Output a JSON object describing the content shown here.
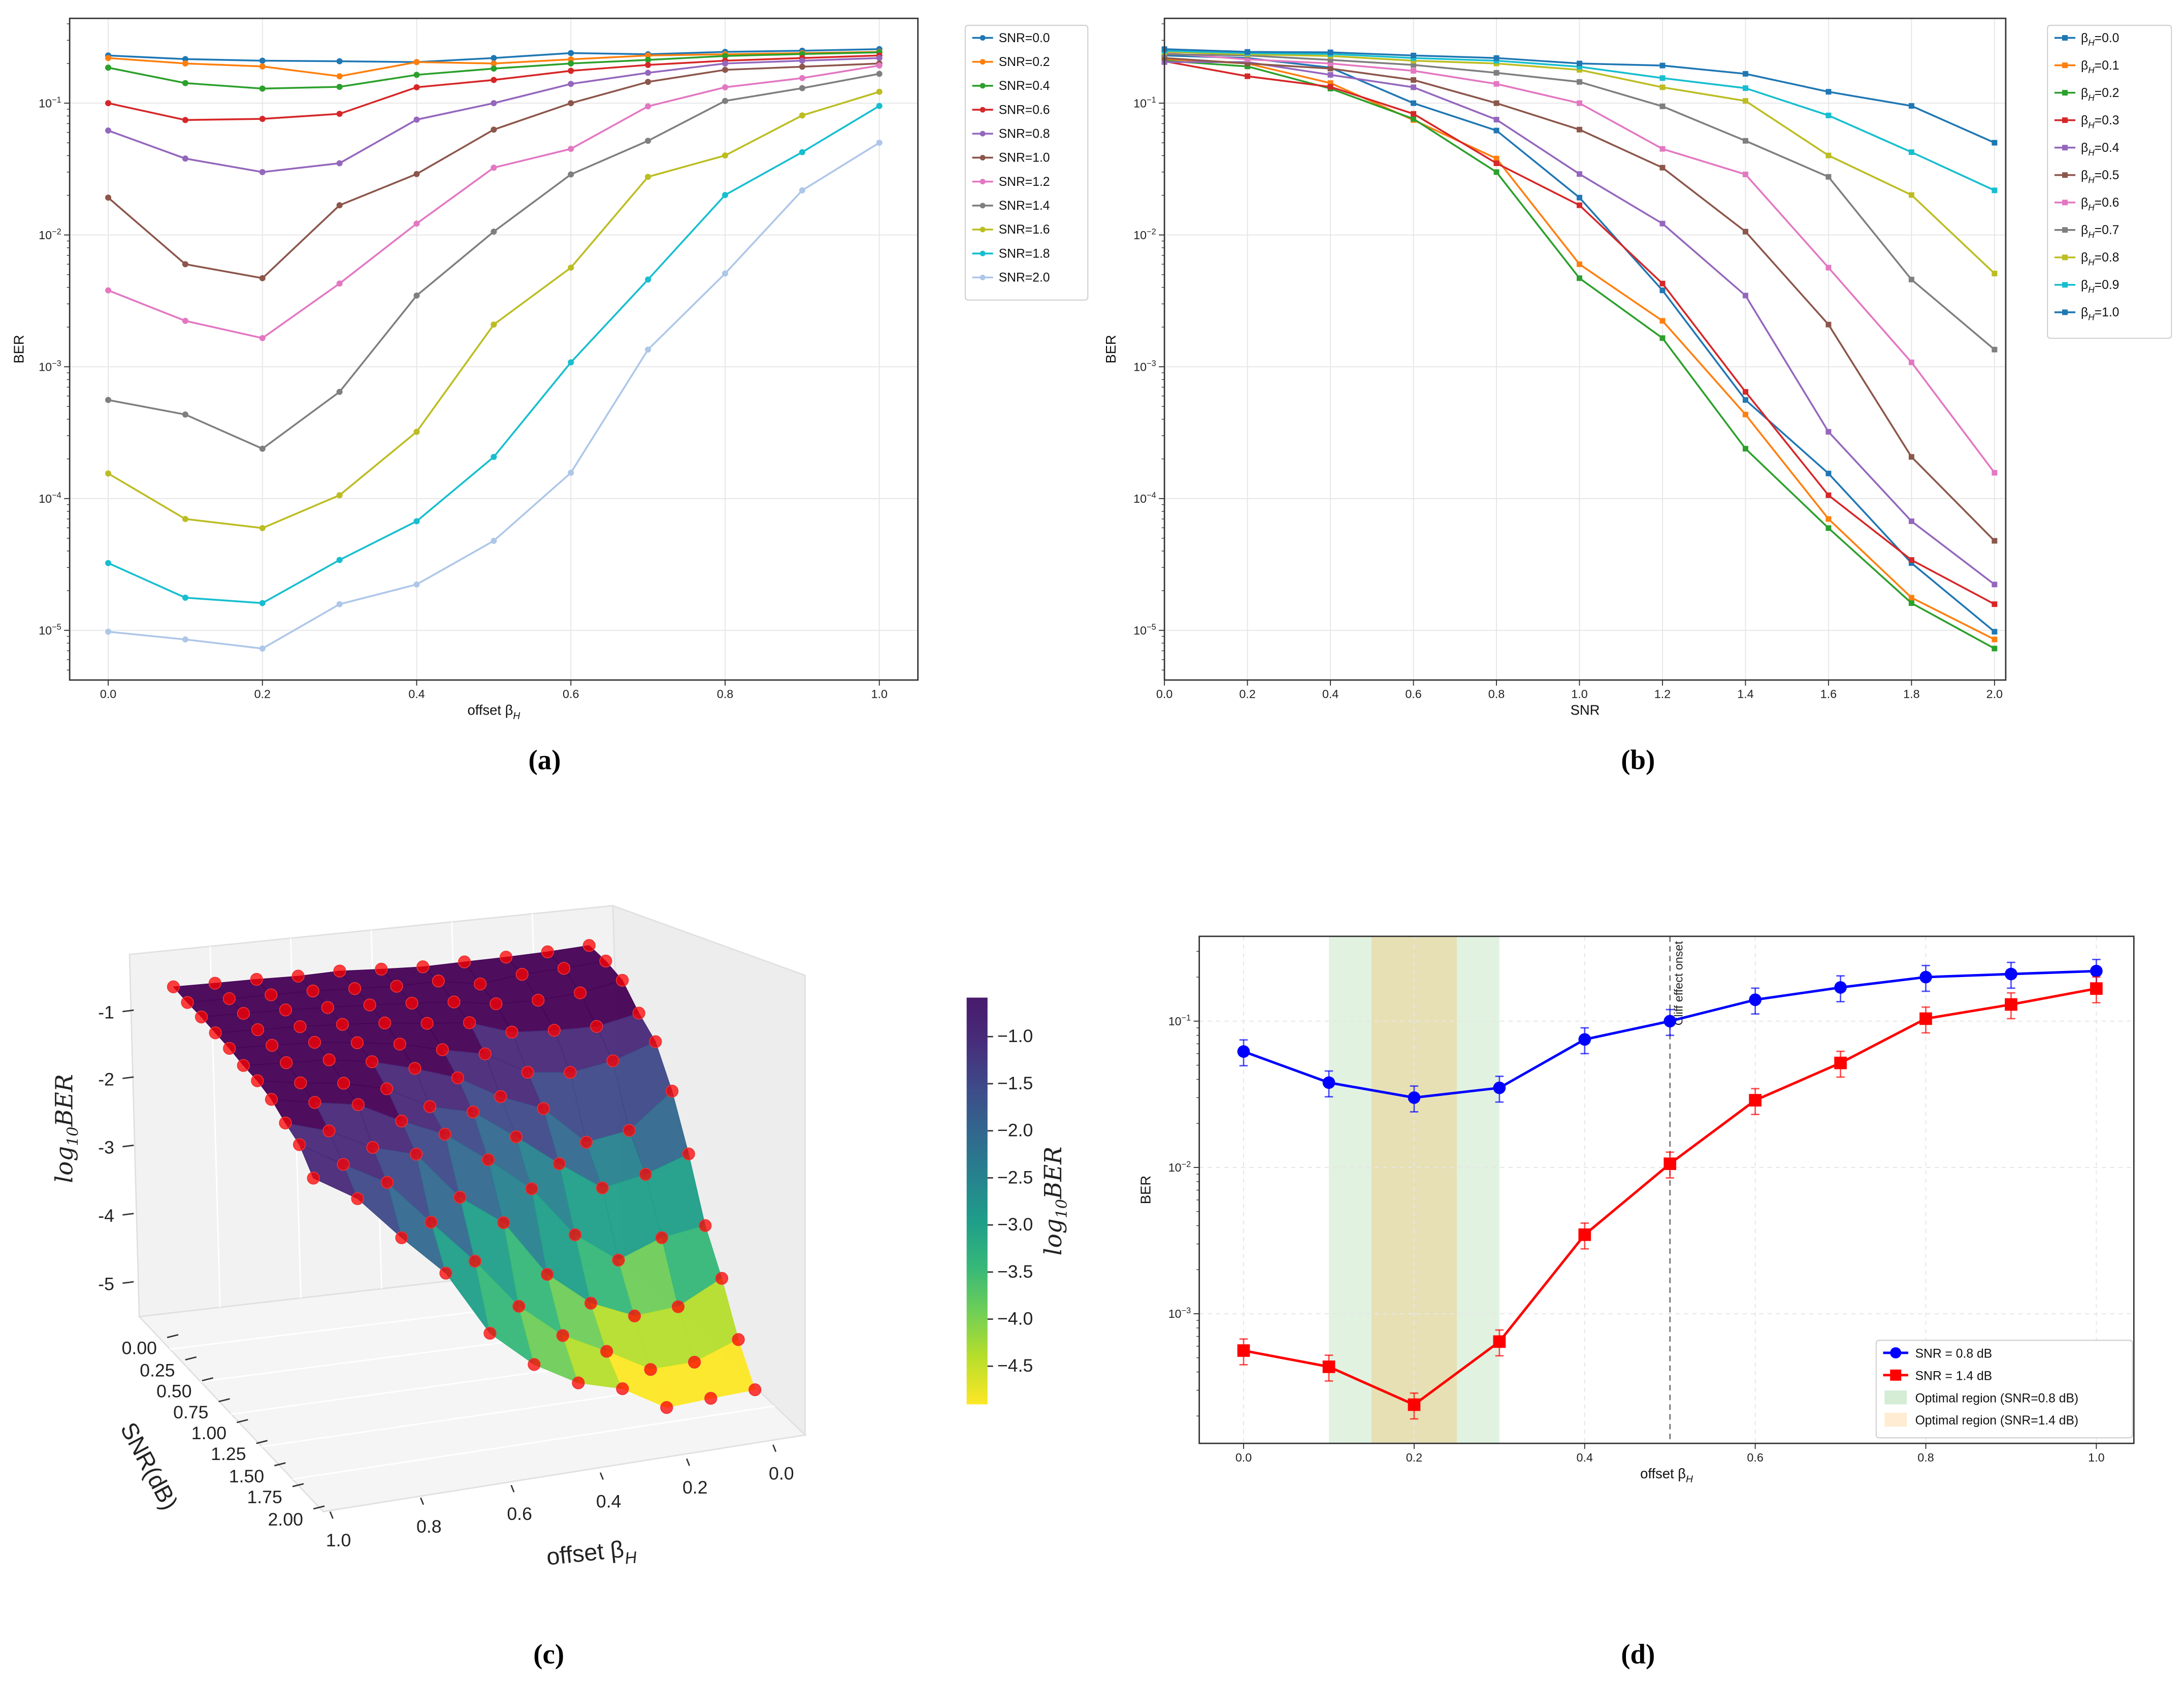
{
  "panel_labels": [
    "(a)",
    "(b)",
    "(c)",
    "(d)"
  ],
  "chart_data": [
    {
      "type": "line",
      "panel": "(a)",
      "xlabel": "offset β_H",
      "ylabel": "BER",
      "yscale": "log",
      "xlim": [
        -0.05,
        1.05
      ],
      "ylim": [
        4.2e-06,
        0.44
      ],
      "xticks": [
        "0.0",
        "0.2",
        "0.4",
        "0.6",
        "0.8",
        "1.0"
      ],
      "yticks": [
        "10^-5",
        "10^-4",
        "10^-3",
        "10^-2",
        "10^-1"
      ],
      "grid": true,
      "legend": "outside-right",
      "marker": "circle",
      "x": [
        0.0,
        0.1,
        0.2,
        0.3,
        0.4,
        0.5,
        0.6,
        0.7,
        0.8,
        0.9,
        1.0
      ],
      "series": [
        {
          "name": "SNR=0.0",
          "color": "#1f77b4",
          "values": [
            0.23,
            0.216,
            0.21,
            0.208,
            0.205,
            0.22,
            0.24,
            0.235,
            0.245,
            0.25,
            0.257
          ]
        },
        {
          "name": "SNR=0.2",
          "color": "#ff7f0e",
          "values": [
            0.22,
            0.2,
            0.19,
            0.16,
            0.205,
            0.2,
            0.215,
            0.23,
            0.235,
            0.24,
            0.245
          ]
        },
        {
          "name": "SNR=0.4",
          "color": "#2ca02c",
          "values": [
            0.186,
            0.142,
            0.129,
            0.133,
            0.164,
            0.183,
            0.2,
            0.213,
            0.228,
            0.236,
            0.243
          ]
        },
        {
          "name": "SNR=0.6",
          "color": "#d62728",
          "values": [
            0.1,
            0.0745,
            0.076,
            0.083,
            0.132,
            0.15,
            0.176,
            0.195,
            0.21,
            0.22,
            0.23
          ]
        },
        {
          "name": "SNR=0.8",
          "color": "#9467bd",
          "values": [
            0.062,
            0.038,
            0.03,
            0.035,
            0.075,
            0.1,
            0.14,
            0.17,
            0.2,
            0.21,
            0.22
          ]
        },
        {
          "name": "SNR=1.0",
          "color": "#8c564b",
          "values": [
            0.0192,
            0.006,
            0.0047,
            0.0168,
            0.029,
            0.063,
            0.1,
            0.145,
            0.179,
            0.189,
            0.2
          ]
        },
        {
          "name": "SNR=1.2",
          "color": "#e377c2",
          "values": [
            0.0038,
            0.00223,
            0.00165,
            0.00428,
            0.0122,
            0.0324,
            0.045,
            0.0946,
            0.132,
            0.155,
            0.193
          ]
        },
        {
          "name": "SNR=1.4",
          "color": "#7f7f7f",
          "values": [
            0.00056,
            0.000434,
            0.000239,
            0.000645,
            0.00347,
            0.0106,
            0.0288,
            0.0518,
            0.104,
            0.13,
            0.167
          ]
        },
        {
          "name": "SNR=1.6",
          "color": "#bcbd22",
          "values": [
            0.000155,
            7e-05,
            5.97e-05,
            0.000106,
            0.000321,
            0.00209,
            0.00565,
            0.0276,
            0.0401,
            0.0807,
            0.122
          ]
        },
        {
          "name": "SNR=1.8",
          "color": "#17becf",
          "values": [
            3.24e-05,
            1.77e-05,
            1.61e-05,
            3.42e-05,
            6.73e-05,
            0.000207,
            0.00108,
            0.00459,
            0.0201,
            0.0425,
            0.0953
          ]
        },
        {
          "name": "SNR=2.0",
          "color": "#aec7e8",
          "values": [
            9.77e-06,
            8.53e-06,
            7.28e-06,
            1.58e-05,
            2.23e-05,
            4.78e-05,
            0.000157,
            0.00135,
            0.0051,
            0.0218,
            0.0501
          ]
        }
      ]
    },
    {
      "type": "line",
      "panel": "(b)",
      "xlabel": "SNR",
      "ylabel": "BER",
      "yscale": "log",
      "xlim": [
        0.0,
        2.027
      ],
      "ylim": [
        4.2e-06,
        0.44
      ],
      "xticks": [
        "0.0",
        "0.2",
        "0.4",
        "0.6",
        "0.8",
        "1.0",
        "1.2",
        "1.4",
        "1.6",
        "1.8",
        "2.0"
      ],
      "yticks": [
        "10^-5",
        "10^-4",
        "10^-3",
        "10^-2",
        "10^-1"
      ],
      "grid": true,
      "legend": "outside-right",
      "marker": "square",
      "x": [
        0.0,
        0.2,
        0.4,
        0.6,
        0.8,
        1.0,
        1.2,
        1.4,
        1.6,
        1.8,
        2.0
      ],
      "series": [
        {
          "name": "β_H=0.0",
          "color": "#1f77b4",
          "values": [
            0.23,
            0.22,
            0.186,
            0.1,
            0.062,
            0.0192,
            0.0038,
            0.00056,
            0.000155,
            3.24e-05,
            9.77e-06
          ]
        },
        {
          "name": "β_H=0.1",
          "color": "#ff7f0e",
          "values": [
            0.216,
            0.2,
            0.142,
            0.0745,
            0.038,
            0.006,
            0.00223,
            0.000434,
            7e-05,
            1.77e-05,
            8.53e-06
          ]
        },
        {
          "name": "β_H=0.2",
          "color": "#2ca02c",
          "values": [
            0.21,
            0.19,
            0.129,
            0.076,
            0.03,
            0.0047,
            0.00165,
            0.000239,
            5.97e-05,
            1.61e-05,
            7.28e-06
          ]
        },
        {
          "name": "β_H=0.3",
          "color": "#d62728",
          "values": [
            0.208,
            0.16,
            0.133,
            0.083,
            0.035,
            0.0168,
            0.00428,
            0.000645,
            0.000106,
            3.42e-05,
            1.58e-05
          ]
        },
        {
          "name": "β_H=0.4",
          "color": "#9467bd",
          "values": [
            0.205,
            0.205,
            0.164,
            0.132,
            0.075,
            0.029,
            0.0122,
            0.00347,
            0.000321,
            6.73e-05,
            2.23e-05
          ]
        },
        {
          "name": "β_H=0.5",
          "color": "#8c564b",
          "values": [
            0.22,
            0.2,
            0.183,
            0.15,
            0.1,
            0.063,
            0.0324,
            0.0106,
            0.00209,
            0.000207,
            4.78e-05
          ]
        },
        {
          "name": "β_H=0.6",
          "color": "#e377c2",
          "values": [
            0.24,
            0.215,
            0.2,
            0.176,
            0.14,
            0.1,
            0.045,
            0.0288,
            0.00565,
            0.00108,
            0.000157
          ]
        },
        {
          "name": "β_H=0.7",
          "color": "#7f7f7f",
          "values": [
            0.235,
            0.23,
            0.213,
            0.195,
            0.17,
            0.145,
            0.0946,
            0.0518,
            0.0276,
            0.00459,
            0.00135
          ]
        },
        {
          "name": "β_H=0.8",
          "color": "#bcbd22",
          "values": [
            0.245,
            0.235,
            0.228,
            0.21,
            0.2,
            0.179,
            0.132,
            0.104,
            0.0401,
            0.0201,
            0.0051
          ]
        },
        {
          "name": "β_H=0.9",
          "color": "#17becf",
          "values": [
            0.25,
            0.24,
            0.236,
            0.22,
            0.21,
            0.189,
            0.155,
            0.13,
            0.0807,
            0.0425,
            0.0218
          ]
        },
        {
          "name": "β_H=1.0",
          "color": "#1f77b4",
          "values": [
            0.257,
            0.245,
            0.243,
            0.23,
            0.22,
            0.2,
            0.193,
            0.167,
            0.122,
            0.0953,
            0.0501
          ]
        }
      ]
    },
    {
      "type": "surface",
      "panel": "(c)",
      "xlabel": "offset β_H",
      "ylabel": "SNR(dB)",
      "zlabel": "log10BER",
      "x": [
        0.0,
        0.1,
        0.2,
        0.3,
        0.4,
        0.5,
        0.6,
        0.7,
        0.8,
        0.9,
        1.0
      ],
      "y": [
        0.0,
        0.2,
        0.4,
        0.6,
        0.8,
        1.0,
        1.2,
        1.4,
        1.6,
        1.8,
        2.0
      ],
      "z_from": "log10 of panel (a) BER values",
      "xticks": [
        "1.0",
        "0.8",
        "0.6",
        "0.4",
        "0.2",
        "0.0"
      ],
      "yticks": [
        "0.00",
        "0.25",
        "0.50",
        "0.75",
        "1.00",
        "1.25",
        "1.50",
        "1.75",
        "2.00"
      ],
      "zticks": [
        "-1",
        "-2",
        "-3",
        "-4",
        "-5"
      ],
      "colormap": "viridis_r",
      "colorbar_label": "log10BER",
      "colorbar_ticks": [
        "-1.0",
        "-1.5",
        "-2.0",
        "-2.5",
        "-3.0",
        "-3.5",
        "-4.0",
        "-4.5"
      ],
      "marker_color": "#ff0000"
    },
    {
      "type": "line",
      "panel": "(d)",
      "xlabel": "offset β_H",
      "ylabel": "BER",
      "yscale": "log",
      "xlim": [
        -0.052,
        1.044
      ],
      "ylim": [
        0.00013,
        0.38
      ],
      "xticks": [
        "0.0",
        "0.2",
        "0.4",
        "0.6",
        "0.8",
        "1.0"
      ],
      "yticks": [
        "10^-3",
        "10^-2",
        "10^-1"
      ],
      "grid": true,
      "legend": "lower-right",
      "x": [
        0.0,
        0.1,
        0.2,
        0.3,
        0.4,
        0.5,
        0.6,
        0.7,
        0.8,
        0.9,
        1.0
      ],
      "error_relative": 0.2,
      "series": [
        {
          "name": "SNR = 0.8 dB",
          "color": "#0000ff",
          "marker": "circle",
          "values": [
            0.062,
            0.038,
            0.03,
            0.035,
            0.075,
            0.1,
            0.14,
            0.17,
            0.2,
            0.21,
            0.22
          ]
        },
        {
          "name": "SNR = 1.4 dB",
          "color": "#ff0000",
          "marker": "square",
          "values": [
            0.00056,
            0.000434,
            0.000239,
            0.000645,
            0.00347,
            0.0106,
            0.0288,
            0.0518,
            0.104,
            0.13,
            0.167
          ]
        }
      ],
      "regions": [
        {
          "name": "Optimal region (SNR=0.8 dB)",
          "from": 0.1,
          "to": 0.3,
          "color": "#2ca02c"
        },
        {
          "name": "Optimal region (SNR=1.4 dB)",
          "from": 0.15,
          "to": 0.25,
          "color": "#ff9f1c"
        }
      ],
      "vline": {
        "x": 0.5,
        "label": "Cliff effect onset"
      }
    }
  ]
}
